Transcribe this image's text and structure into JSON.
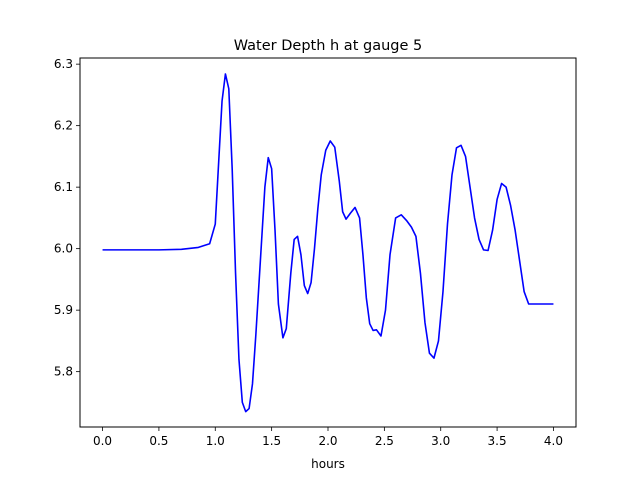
{
  "chart_data": {
    "type": "line",
    "title": "Water Depth h at gauge 5",
    "xlabel": "hours",
    "ylabel": "",
    "xlim": [
      -0.2,
      4.2
    ],
    "ylim": [
      5.71,
      6.31
    ],
    "xticks": [
      "0.0",
      "0.5",
      "1.0",
      "1.5",
      "2.0",
      "2.5",
      "3.0",
      "3.5",
      "4.0"
    ],
    "yticks": [
      "5.8",
      "5.9",
      "6.0",
      "6.1",
      "6.2",
      "6.3"
    ],
    "grid": false,
    "legend": "none",
    "series": [
      {
        "color": "#0000ff",
        "x": [
          0.0,
          0.25,
          0.5,
          0.7,
          0.85,
          0.95,
          1.0,
          1.03,
          1.06,
          1.09,
          1.12,
          1.15,
          1.18,
          1.21,
          1.24,
          1.27,
          1.3,
          1.33,
          1.36,
          1.4,
          1.44,
          1.47,
          1.5,
          1.53,
          1.56,
          1.6,
          1.63,
          1.67,
          1.7,
          1.73,
          1.76,
          1.79,
          1.82,
          1.85,
          1.88,
          1.91,
          1.94,
          1.98,
          2.02,
          2.06,
          2.1,
          2.13,
          2.16,
          2.2,
          2.24,
          2.28,
          2.31,
          2.34,
          2.37,
          2.4,
          2.43,
          2.47,
          2.51,
          2.55,
          2.6,
          2.65,
          2.7,
          2.74,
          2.78,
          2.82,
          2.86,
          2.9,
          2.94,
          2.98,
          3.02,
          3.06,
          3.1,
          3.14,
          3.18,
          3.22,
          3.26,
          3.3,
          3.34,
          3.38,
          3.42,
          3.46,
          3.5,
          3.54,
          3.58,
          3.62,
          3.66,
          3.7,
          3.74,
          3.78,
          3.82,
          3.86,
          3.9,
          3.94,
          3.98,
          4.0
        ],
        "y": [
          5.998,
          5.998,
          5.998,
          5.999,
          6.002,
          6.008,
          6.04,
          6.14,
          6.24,
          6.284,
          6.26,
          6.13,
          5.96,
          5.82,
          5.75,
          5.735,
          5.74,
          5.78,
          5.86,
          5.98,
          6.1,
          6.148,
          6.13,
          6.03,
          5.91,
          5.855,
          5.87,
          5.96,
          6.015,
          6.02,
          5.99,
          5.94,
          5.927,
          5.945,
          6.0,
          6.065,
          6.12,
          6.16,
          6.175,
          6.165,
          6.11,
          6.06,
          6.048,
          6.058,
          6.067,
          6.05,
          5.99,
          5.92,
          5.878,
          5.867,
          5.868,
          5.858,
          5.9,
          5.99,
          6.05,
          6.055,
          6.045,
          6.035,
          6.02,
          5.96,
          5.88,
          5.83,
          5.822,
          5.85,
          5.93,
          6.04,
          6.12,
          6.164,
          6.168,
          6.15,
          6.1,
          6.05,
          6.015,
          5.998,
          5.997,
          6.03,
          6.08,
          6.106,
          6.1,
          6.07,
          6.03,
          5.98,
          5.93,
          5.91,
          5.91,
          5.91,
          5.91,
          5.91,
          5.91,
          5.91
        ]
      }
    ]
  }
}
